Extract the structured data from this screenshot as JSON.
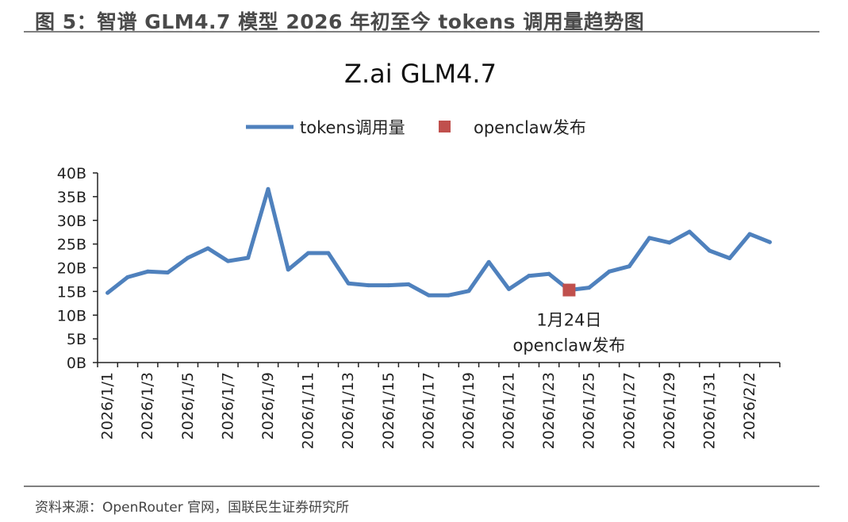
{
  "figure": {
    "title": "图 5：智谱 GLM4.7 模型 2026 年初至今 tokens 调用量趋势图",
    "source": "资料来源：OpenRouter 官网，国联民生证券研究所"
  },
  "colors": {
    "line": "#4f81bd",
    "marker": "#c0504d",
    "text": "#222222",
    "rule": "#7f7f7f"
  },
  "chart_data": {
    "type": "line",
    "title": "Z.ai GLM4.7",
    "xlabel": "",
    "ylabel": "",
    "ylim": [
      0,
      40
    ],
    "y_unit": "B",
    "yticks": [
      "0B",
      "5B",
      "10B",
      "15B",
      "20B",
      "25B",
      "30B",
      "35B",
      "40B"
    ],
    "x_tick_labels": [
      "2026/1/1",
      "2026/1/3",
      "2026/1/5",
      "2026/1/7",
      "2026/1/9",
      "2026/1/11",
      "2026/1/13",
      "2026/1/15",
      "2026/1/17",
      "2026/1/19",
      "2026/1/21",
      "2026/1/23",
      "2026/1/25",
      "2026/1/27",
      "2026/1/29",
      "2026/1/31",
      "2026/2/2"
    ],
    "legend_position": "top-center",
    "series": [
      {
        "name": "tokens调用量",
        "categories": [
          "2026/1/1",
          "2026/1/2",
          "2026/1/3",
          "2026/1/4",
          "2026/1/5",
          "2026/1/6",
          "2026/1/7",
          "2026/1/8",
          "2026/1/9",
          "2026/1/10",
          "2026/1/11",
          "2026/1/12",
          "2026/1/13",
          "2026/1/14",
          "2026/1/15",
          "2026/1/16",
          "2026/1/17",
          "2026/1/18",
          "2026/1/19",
          "2026/1/20",
          "2026/1/21",
          "2026/1/22",
          "2026/1/23",
          "2026/1/24",
          "2026/1/25",
          "2026/1/26",
          "2026/1/27",
          "2026/1/28",
          "2026/1/29",
          "2026/1/30",
          "2026/1/31",
          "2026/2/1",
          "2026/2/2",
          "2026/2/3"
        ],
        "values": [
          14.7,
          18.0,
          19.2,
          19.0,
          22.1,
          24.1,
          21.4,
          22.1,
          36.6,
          19.6,
          23.1,
          23.1,
          16.7,
          16.3,
          16.3,
          16.5,
          14.2,
          14.2,
          15.1,
          21.2,
          15.5,
          18.3,
          18.7,
          15.3,
          15.8,
          19.2,
          20.3,
          26.3,
          25.3,
          27.6,
          23.6,
          22.0,
          27.1,
          25.4
        ]
      },
      {
        "name": "openclaw发布",
        "type": "scatter",
        "points": [
          {
            "x": "2026/1/24",
            "y": 15.3
          }
        ],
        "annotation": [
          "1月24日",
          "openclaw发布"
        ]
      }
    ]
  }
}
